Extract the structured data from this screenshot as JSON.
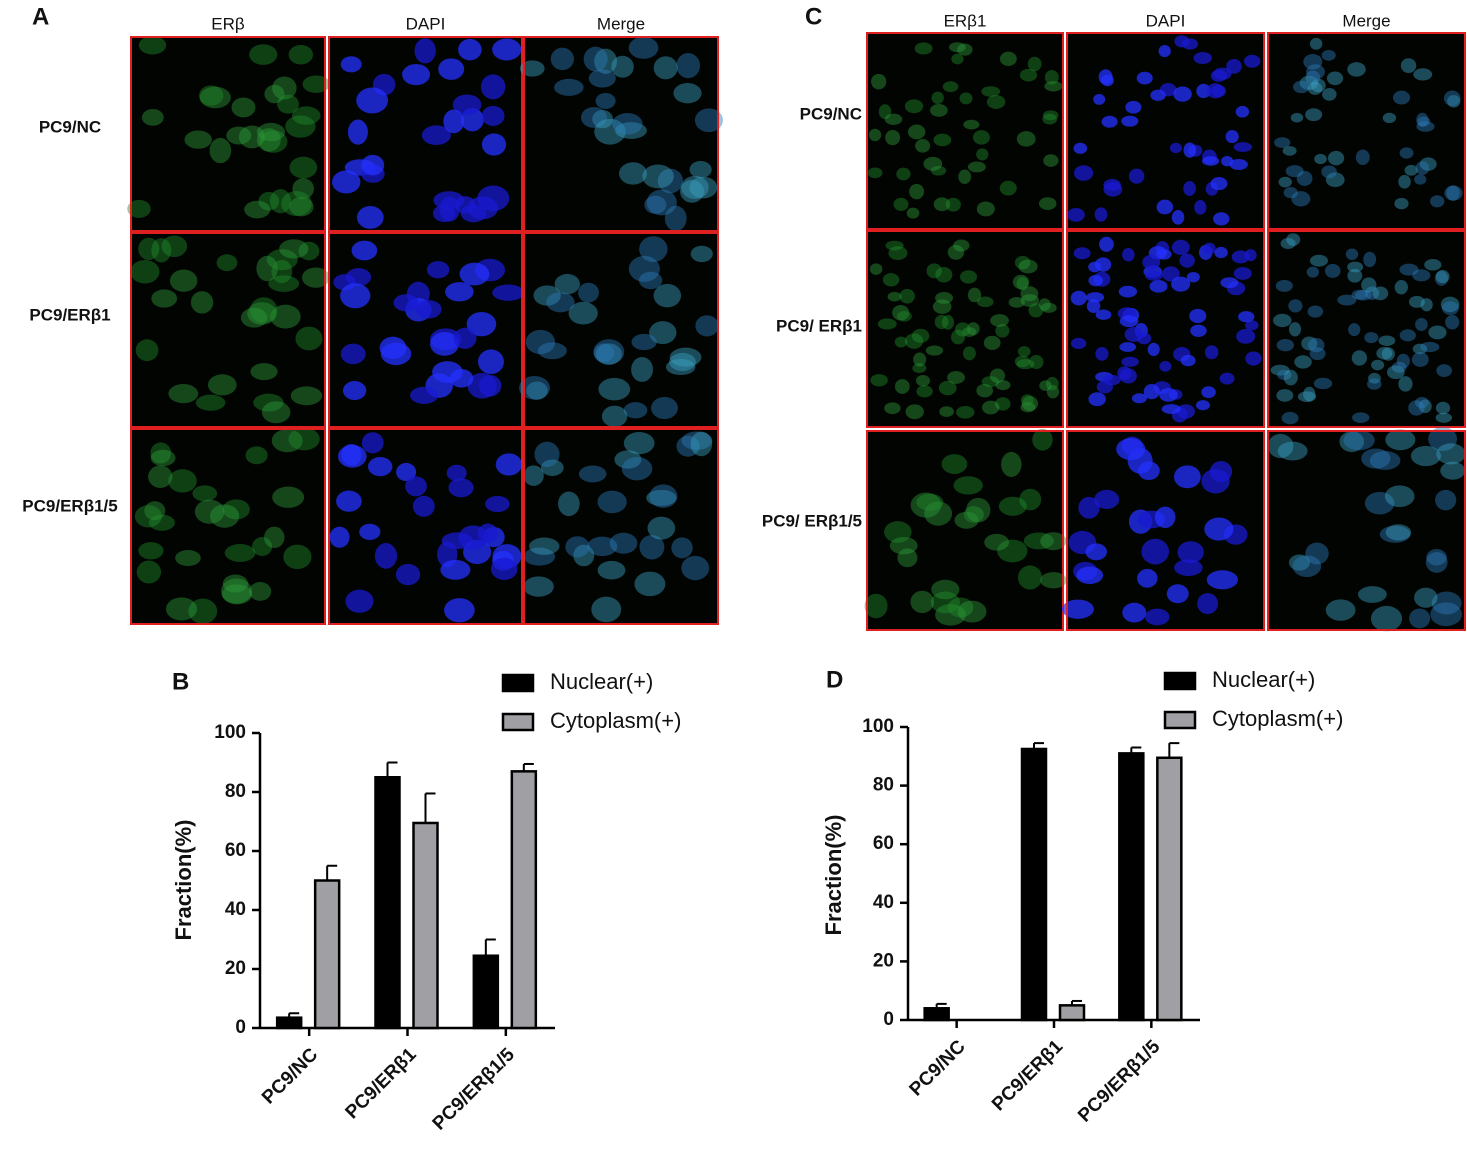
{
  "panels": [
    {
      "panel_label": "A",
      "columns": [
        "ERβ",
        "DAPI",
        "Merge"
      ],
      "rows": [
        "PC9/NC",
        "PC9/ERβ1",
        "PC9/ERβ1/5"
      ]
    },
    {
      "panel_label": "C",
      "columns": [
        "ERβ1",
        "DAPI",
        "Merge"
      ],
      "rows": [
        "PC9/NC",
        "PC9/ ERβ1",
        "PC9/ ERβ1/5"
      ]
    }
  ],
  "chart_data": [
    {
      "type": "bar",
      "panel_label": "B",
      "y_label": "Fraction(%)",
      "categories": [
        "PC9/NC",
        "PC9/ERβ1",
        "PC9/ERβ1/5"
      ],
      "series": [
        {
          "name": "Nuclear(+)",
          "color": "#000000",
          "values": [
            3.5,
            85,
            24.5
          ],
          "errors": [
            1.5,
            5,
            5.5
          ]
        },
        {
          "name": "Cytoplasm(+)",
          "color": "#a0a0a4",
          "values": [
            50,
            69.5,
            87
          ],
          "errors": [
            5,
            10,
            2.5
          ]
        }
      ],
      "ylim": [
        0,
        100
      ],
      "yticks": [
        0,
        20,
        40,
        60,
        80,
        100
      ],
      "legend": "top-right"
    },
    {
      "type": "bar",
      "panel_label": "D",
      "y_label": "Fraction(%)",
      "categories": [
        "PC9/NC",
        "PC9/ERβ1",
        "PC9/ERβ1/5"
      ],
      "series": [
        {
          "name": "Nuclear(+)",
          "color": "#000000",
          "values": [
            4,
            92.5,
            91
          ],
          "errors": [
            1.5,
            2,
            2
          ]
        },
        {
          "name": "Cytoplasm(+)",
          "color": "#a0a0a4",
          "values": [
            0,
            5,
            89.5
          ],
          "errors": [
            0,
            1.5,
            5
          ]
        }
      ],
      "ylim": [
        0,
        100
      ],
      "yticks": [
        0,
        20,
        40,
        60,
        80,
        100
      ],
      "legend": "top-right"
    }
  ]
}
